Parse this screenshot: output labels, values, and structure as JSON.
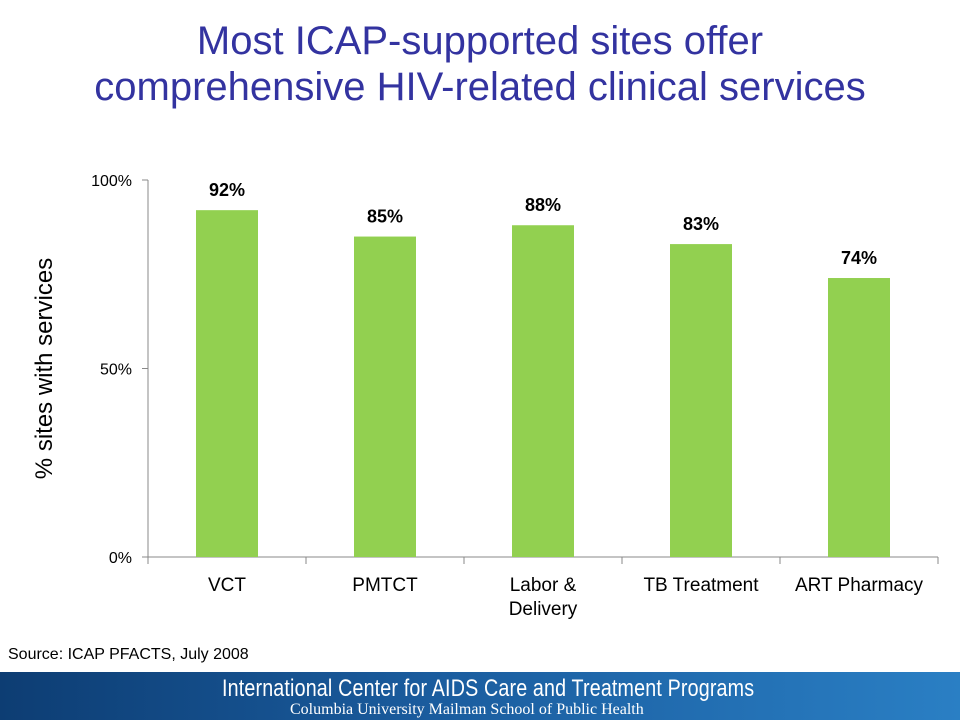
{
  "title": {
    "line1": "Most ICAP-supported sites offer",
    "line2": "comprehensive HIV-related clinical services"
  },
  "chart_data": {
    "type": "bar",
    "categories": [
      "VCT",
      "PMTCT",
      "Labor & Delivery",
      "TB Treatment",
      "ART Pharmacy"
    ],
    "category_lines": [
      [
        "VCT"
      ],
      [
        "PMTCT"
      ],
      [
        "Labor &",
        "Delivery"
      ],
      [
        "TB Treatment"
      ],
      [
        "ART Pharmacy"
      ]
    ],
    "values": [
      92,
      85,
      88,
      83,
      74
    ],
    "data_labels": [
      "92%",
      "85%",
      "88%",
      "83%",
      "74%"
    ],
    "ylabel": "% sites with services",
    "ylim": [
      0,
      100
    ],
    "yticks": [
      0,
      50,
      100
    ],
    "ytick_labels": [
      "0%",
      "50%",
      "100%"
    ],
    "bar_color": "#92d050",
    "grid": false,
    "legend": "none"
  },
  "source": "Source: ICAP PFACTS, July 2008",
  "footer": {
    "line1": "International Center for AIDS Care and Treatment Programs",
    "line2": "Columbia University Mailman School of Public Health"
  }
}
